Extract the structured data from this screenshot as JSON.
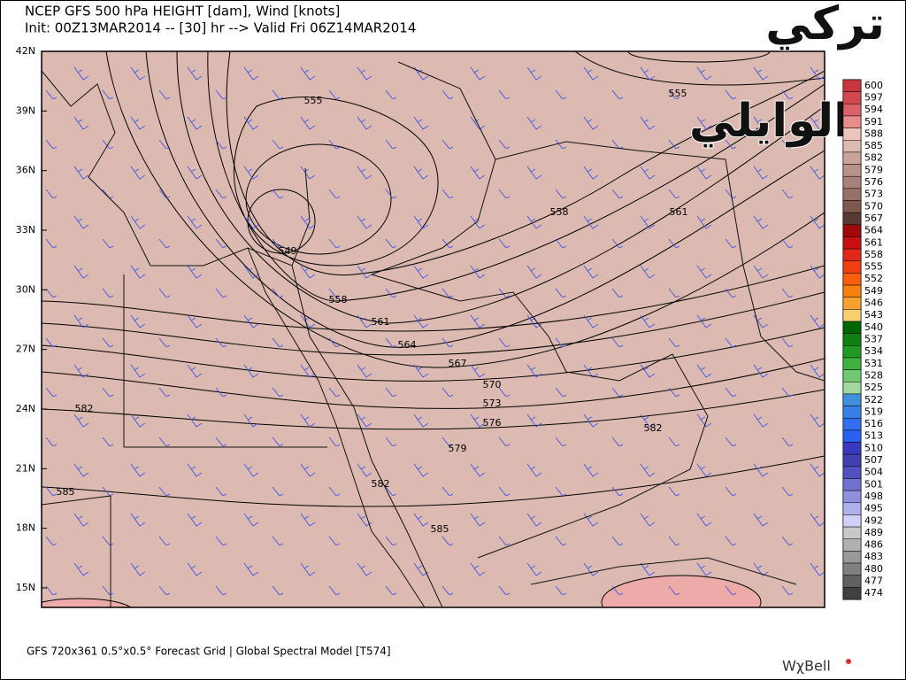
{
  "header": {
    "line1": "NCEP GFS 500 hPa HEIGHT [dam], Wind [knots]",
    "line2": "Init: 00Z13MAR2014 -- [30] hr --> Valid Fri 06Z14MAR2014"
  },
  "watermark": {
    "line1": "تركي",
    "line2": "الوايلي"
  },
  "latitudes": [
    "42N",
    "39N",
    "36N",
    "33N",
    "30N",
    "27N",
    "24N",
    "21N",
    "18N",
    "15N"
  ],
  "contour_labels": [
    "555",
    "555",
    "549",
    "558",
    "558",
    "561",
    "561",
    "564",
    "567",
    "570",
    "573",
    "576",
    "582",
    "579",
    "582",
    "582",
    "585",
    "585"
  ],
  "colorbar": {
    "values": [
      600,
      597,
      594,
      591,
      588,
      585,
      582,
      579,
      576,
      573,
      570,
      567,
      564,
      561,
      558,
      555,
      552,
      549,
      546,
      543,
      540,
      537,
      534,
      531,
      528,
      525,
      522,
      519,
      516,
      513,
      510,
      507,
      504,
      501,
      498,
      495,
      492,
      489,
      486,
      483,
      480,
      477,
      474
    ],
    "colors": [
      "#c8343c",
      "#d24850",
      "#dc6068",
      "#e88c8c",
      "#ecc4bc",
      "#dcbab2",
      "#caa39a",
      "#b9928a",
      "#a8817a",
      "#977069",
      "#805850",
      "#5a3a34",
      "#a00a0a",
      "#c81010",
      "#e02818",
      "#f04010",
      "#f86010",
      "#f88010",
      "#f8a030",
      "#f8d070",
      "#006600",
      "#108010",
      "#209a20",
      "#40b040",
      "#70c870",
      "#a0d8a0",
      "#4090e0",
      "#3880e8",
      "#3070f0",
      "#2860f0",
      "#3838c0",
      "#4040b0",
      "#5050c0",
      "#7070d0",
      "#9090e0",
      "#b0b0f0",
      "#d0d0f8",
      "#c8c8c8",
      "#b0b0b0",
      "#989898",
      "#808080",
      "#606060",
      "#404040"
    ]
  },
  "footer": "GFS 720x361 0.5°x0.5° Forecast Grid | Global Spectral Model [T574]",
  "brand": "WχBell"
}
